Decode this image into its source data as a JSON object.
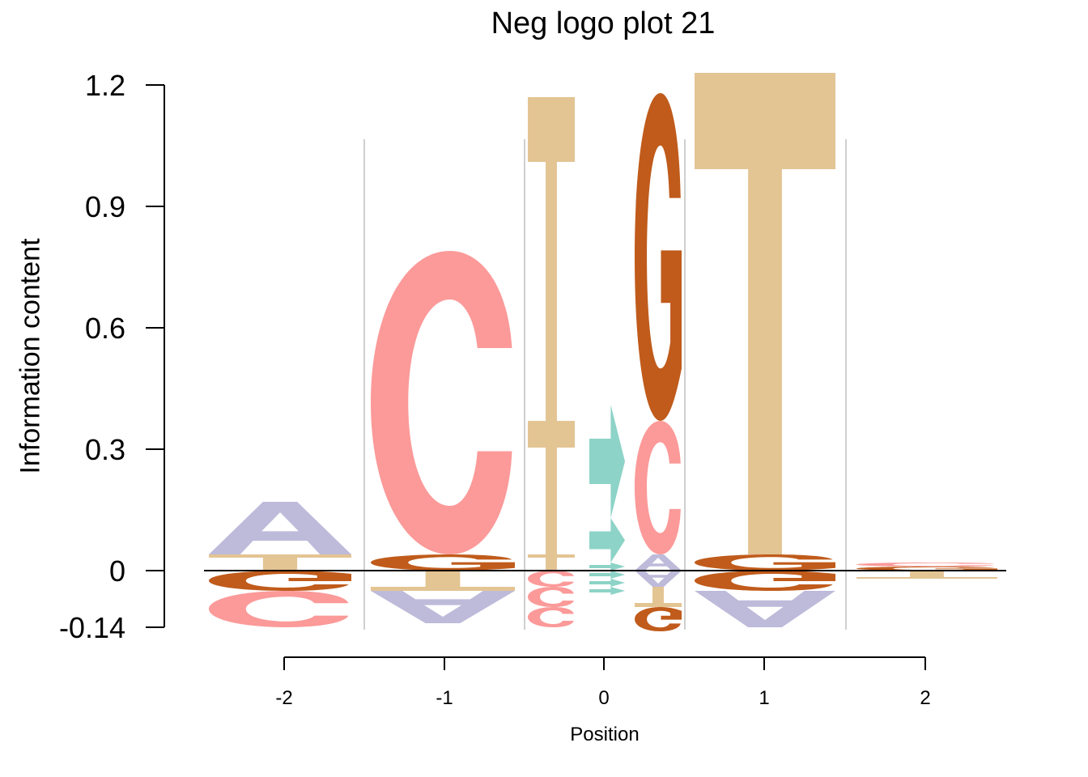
{
  "chart_data": {
    "type": "sequence-logo",
    "title": "Neg logo plot 21",
    "xlabel": "Position",
    "ylabel": "Information content",
    "ylim": [
      -0.14,
      1.2
    ],
    "y_ticks": [
      "-0.14",
      "0",
      "0.3",
      "0.6",
      "0.9",
      "1.2"
    ],
    "x_ticks": [
      "-2",
      "-1",
      "0",
      "1",
      "2"
    ],
    "colors": {
      "A": "#BEBADA",
      "C": "#FB9A99",
      "G": "#C05B1B",
      "T": "#E3C493",
      "M": "#8DD3C7"
    },
    "columns": [
      {
        "position": "-2",
        "positive": [
          {
            "letter": "T",
            "height": 0.04
          },
          {
            "letter": "A",
            "height": 0.13
          }
        ],
        "negative": [
          {
            "letter": "G",
            "height": 0.05
          },
          {
            "letter": "C",
            "height": 0.09
          }
        ]
      },
      {
        "position": "-1",
        "positive": [
          {
            "letter": "G",
            "height": 0.04
          },
          {
            "letter": "C",
            "height": 0.75
          }
        ],
        "negative": [
          {
            "letter": "T",
            "height": 0.05
          },
          {
            "letter": "A",
            "height": 0.08
          }
        ]
      },
      {
        "position": "0 (base 1)",
        "positive": [
          {
            "letter": "T",
            "height": 0.04
          },
          {
            "letter": "T",
            "height": 0.33
          },
          {
            "letter": "T",
            "height": 0.8
          }
        ],
        "negative": [
          {
            "letter": "C",
            "height": 0.04
          },
          {
            "letter": "C",
            "height": 0.05
          },
          {
            "letter": "C",
            "height": 0.05
          }
        ]
      },
      {
        "position": "0 (mod)",
        "positive": [
          {
            "letter": "M",
            "height": 0.02
          },
          {
            "letter": "M",
            "height": 0.11
          },
          {
            "letter": "M",
            "height": 0.28
          }
        ],
        "negative": [
          {
            "letter": "M",
            "height": 0.02
          },
          {
            "letter": "M",
            "height": 0.02
          },
          {
            "letter": "M",
            "height": 0.02
          }
        ]
      },
      {
        "position": "0 (base 2)",
        "positive": [
          {
            "letter": "A",
            "height": 0.04
          },
          {
            "letter": "C",
            "height": 0.33
          },
          {
            "letter": "G",
            "height": 0.81
          }
        ],
        "negative": [
          {
            "letter": "A",
            "height": 0.04
          },
          {
            "letter": "T",
            "height": 0.05
          },
          {
            "letter": "G",
            "height": 0.06
          }
        ]
      },
      {
        "position": "1",
        "positive": [
          {
            "letter": "G",
            "height": 0.04
          },
          {
            "letter": "T",
            "height": 1.19
          }
        ],
        "negative": [
          {
            "letter": "G",
            "height": 0.05
          },
          {
            "letter": "A",
            "height": 0.09
          }
        ]
      },
      {
        "position": "2",
        "positive": [
          {
            "letter": "G",
            "height": 0.01
          },
          {
            "letter": "C",
            "height": 0.01
          }
        ],
        "negative": [
          {
            "letter": "T",
            "height": 0.02
          }
        ]
      }
    ]
  }
}
